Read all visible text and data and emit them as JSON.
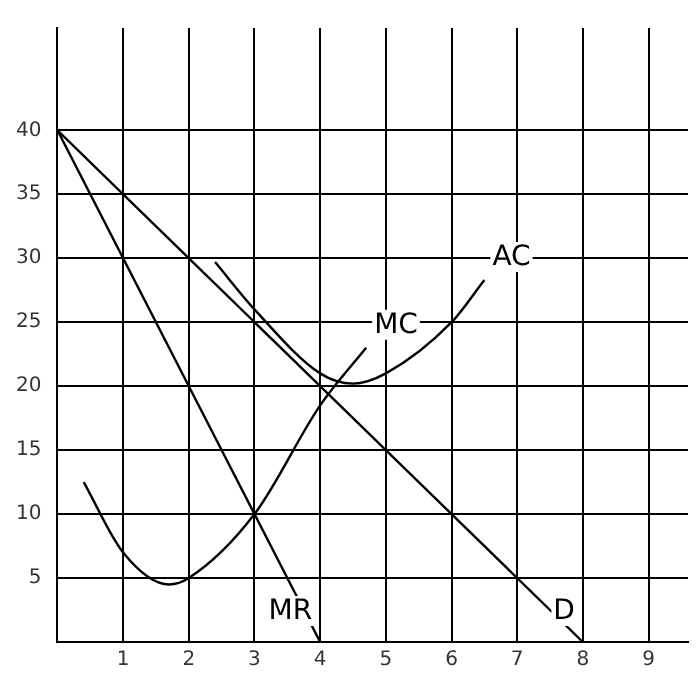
{
  "chart_data": {
    "type": "line",
    "xlim": [
      0,
      9.6
    ],
    "ylim": [
      0,
      48
    ],
    "xticks": [
      1,
      2,
      3,
      4,
      5,
      6,
      7,
      8,
      9
    ],
    "yticks": [
      5,
      10,
      15,
      20,
      25,
      30,
      35,
      40
    ],
    "grid": true,
    "line_style": "solid",
    "marker": "none",
    "series": [
      {
        "name": "D",
        "color": "#000000",
        "x": [
          0,
          8
        ],
        "values": [
          40,
          0
        ]
      },
      {
        "name": "MR",
        "color": "#000000",
        "x": [
          0,
          4
        ],
        "values": [
          40,
          0
        ]
      },
      {
        "name": "MC",
        "color": "#000000",
        "x": [
          0.4,
          1,
          1.7,
          2,
          3,
          4,
          4.7
        ],
        "values": [
          12.5,
          7,
          4.5,
          5,
          10,
          18.5,
          23
        ]
      },
      {
        "name": "AC",
        "color": "#000000",
        "x": [
          2.4,
          3,
          4,
          4.5,
          5,
          6,
          6.5
        ],
        "values": [
          29.7,
          26,
          21,
          20.2,
          21,
          25,
          28.3
        ]
      }
    ]
  }
}
